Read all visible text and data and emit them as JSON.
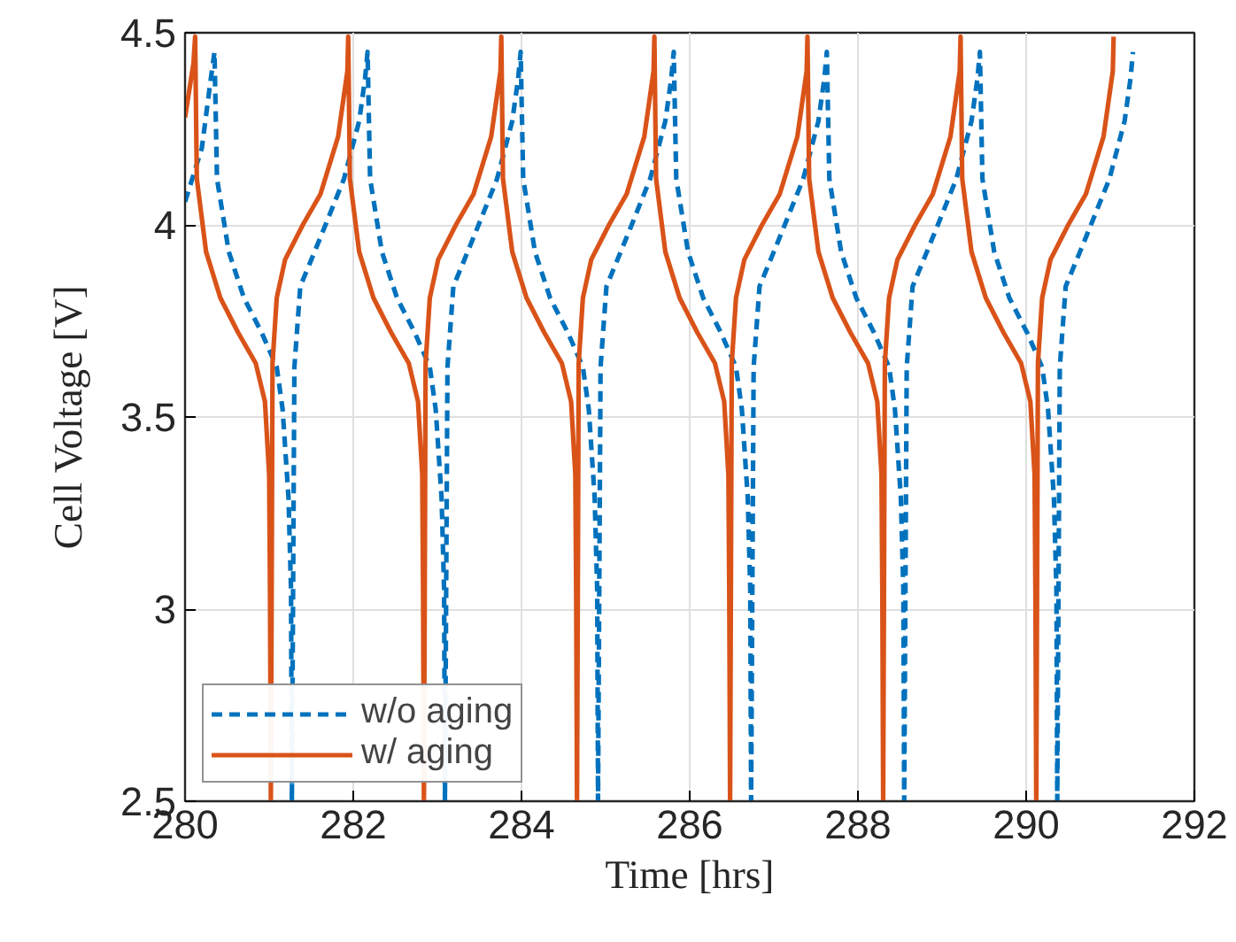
{
  "chart_data": {
    "type": "line",
    "xlabel": "Time [hrs]",
    "ylabel": "Cell Voltage [V]",
    "xlim": [
      280,
      292
    ],
    "ylim": [
      2.5,
      4.5
    ],
    "xticks": [
      280,
      282,
      284,
      286,
      288,
      290,
      292
    ],
    "yticks": [
      2.5,
      3,
      3.5,
      4,
      4.5
    ],
    "grid": true,
    "legend": "bottom left",
    "series": [
      {
        "name": "w/o aging",
        "color": "#0072bd",
        "line_style": "dashed",
        "x": [
          280,
          280.2,
          280.3,
          280.35,
          280.38,
          280.52,
          280.7,
          280.91,
          281.09,
          281.16,
          281.23,
          281.26,
          281.27,
          281.3,
          281.37,
          281.54,
          281.67,
          281.89,
          282.07,
          282.14,
          282.17,
          282.2,
          282.34,
          282.52,
          282.73,
          282.91,
          282.98,
          283.05,
          283.08,
          283.09,
          283.12,
          283.19,
          283.36,
          283.49,
          283.71,
          283.89,
          283.96,
          283.99,
          284.02,
          284.16,
          284.34,
          284.55,
          284.73,
          284.8,
          284.87,
          284.9,
          284.91,
          284.94,
          285.01,
          285.18,
          285.31,
          285.53,
          285.71,
          285.78,
          285.81,
          285.84,
          285.98,
          286.16,
          286.37,
          286.55,
          286.62,
          286.69,
          286.72,
          286.73,
          286.76,
          286.83,
          287.0,
          287.13,
          287.35,
          287.53,
          287.6,
          287.63,
          287.66,
          287.8,
          287.98,
          288.19,
          288.37,
          288.44,
          288.51,
          288.54,
          288.55,
          288.58,
          288.65,
          288.82,
          288.95,
          289.17,
          289.35,
          289.42,
          289.45,
          289.48,
          289.62,
          289.8,
          290.01,
          290.19,
          290.26,
          290.33,
          290.36,
          290.37,
          290.4,
          290.47,
          290.64,
          290.77,
          290.99,
          291.17,
          291.24,
          291.27
        ],
        "values": [
          4.06,
          4.2,
          4.37,
          4.45,
          4.12,
          3.93,
          3.81,
          3.72,
          3.63,
          3.52,
          3.29,
          3.05,
          2.5,
          3.63,
          3.84,
          3.93,
          4.0,
          4.12,
          4.27,
          4.38,
          4.45,
          4.12,
          3.93,
          3.81,
          3.72,
          3.63,
          3.52,
          3.29,
          3.05,
          2.5,
          3.63,
          3.84,
          3.93,
          4.0,
          4.12,
          4.27,
          4.38,
          4.45,
          4.12,
          3.93,
          3.81,
          3.72,
          3.63,
          3.52,
          3.29,
          3.05,
          2.5,
          3.63,
          3.84,
          3.93,
          4.0,
          4.12,
          4.27,
          4.38,
          4.45,
          4.12,
          3.93,
          3.81,
          3.72,
          3.63,
          3.52,
          3.29,
          3.05,
          2.5,
          3.63,
          3.84,
          3.93,
          4.0,
          4.12,
          4.27,
          4.38,
          4.45,
          4.12,
          3.93,
          3.81,
          3.72,
          3.63,
          3.52,
          3.29,
          3.05,
          2.5,
          3.63,
          3.84,
          3.93,
          4.0,
          4.12,
          4.27,
          4.38,
          4.45,
          4.12,
          3.93,
          3.81,
          3.72,
          3.63,
          3.52,
          3.29,
          3.05,
          2.5,
          3.63,
          3.84,
          3.93,
          4.0,
          4.12,
          4.27,
          4.38,
          4.45
        ]
      },
      {
        "name": "w/ aging",
        "color": "#d95319",
        "line_style": "solid",
        "x": [
          280,
          280.1,
          280.12,
          280.14,
          280.25,
          280.42,
          280.63,
          280.84,
          280.95,
          281.0,
          281.01,
          281.02,
          281.04,
          281.09,
          281.19,
          281.4,
          281.61,
          281.82,
          281.93,
          281.94,
          281.96,
          282.07,
          282.24,
          282.45,
          282.66,
          282.77,
          282.82,
          282.83,
          282.84,
          282.86,
          282.91,
          283.01,
          283.22,
          283.43,
          283.64,
          283.75,
          283.76,
          283.78,
          283.89,
          284.06,
          284.27,
          284.48,
          284.59,
          284.64,
          284.65,
          284.66,
          284.68,
          284.73,
          284.83,
          285.04,
          285.25,
          285.46,
          285.57,
          285.58,
          285.6,
          285.71,
          285.88,
          286.09,
          286.3,
          286.41,
          286.46,
          286.47,
          286.48,
          286.5,
          286.55,
          286.65,
          286.86,
          287.07,
          287.28,
          287.39,
          287.4,
          287.42,
          287.53,
          287.7,
          287.91,
          288.12,
          288.23,
          288.28,
          288.29,
          288.3,
          288.32,
          288.37,
          288.47,
          288.68,
          288.89,
          289.1,
          289.21,
          289.22,
          289.24,
          289.35,
          289.52,
          289.73,
          289.94,
          290.05,
          290.1,
          290.11,
          290.12,
          290.14,
          290.19,
          290.29,
          290.5,
          290.71,
          290.92,
          291.03,
          291.04
        ],
        "values": [
          4.28,
          4.42,
          4.49,
          4.12,
          3.93,
          3.81,
          3.72,
          3.64,
          3.54,
          3.35,
          3.05,
          2.5,
          3.64,
          3.81,
          3.91,
          4.0,
          4.08,
          4.23,
          4.4,
          4.49,
          4.12,
          3.93,
          3.81,
          3.72,
          3.64,
          3.54,
          3.35,
          3.05,
          2.5,
          3.64,
          3.81,
          3.91,
          4.0,
          4.08,
          4.23,
          4.4,
          4.49,
          4.12,
          3.93,
          3.81,
          3.72,
          3.64,
          3.54,
          3.35,
          3.05,
          2.5,
          3.64,
          3.81,
          3.91,
          4.0,
          4.08,
          4.23,
          4.4,
          4.49,
          4.12,
          3.93,
          3.81,
          3.72,
          3.64,
          3.54,
          3.35,
          3.05,
          2.5,
          3.64,
          3.81,
          3.91,
          4.0,
          4.08,
          4.23,
          4.4,
          4.49,
          4.12,
          3.93,
          3.81,
          3.72,
          3.64,
          3.54,
          3.35,
          3.05,
          2.5,
          3.64,
          3.81,
          3.91,
          4.0,
          4.08,
          4.23,
          4.4,
          4.49,
          4.12,
          3.93,
          3.81,
          3.72,
          3.64,
          3.54,
          3.35,
          3.05,
          2.5,
          3.64,
          3.81,
          3.91,
          4.0,
          4.08,
          4.23,
          4.4,
          4.49
        ]
      }
    ]
  }
}
